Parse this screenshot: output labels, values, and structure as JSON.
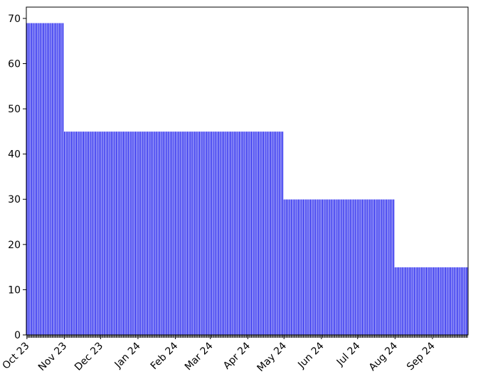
{
  "chart_data": {
    "type": "bar",
    "title": "",
    "xlabel": "",
    "ylabel": "",
    "x_axis": "date",
    "x_range": [
      "2023-10-01",
      "2024-09-30"
    ],
    "bar_color": "#2222ee",
    "bar_edge_color": "#ffffff",
    "series": [
      {
        "values_by_period": [
          {
            "from": "2023-10-01",
            "to": "2023-10-31",
            "value": 69
          },
          {
            "from": "2023-11-01",
            "to": "2024-04-30",
            "value": 45
          },
          {
            "from": "2024-05-01",
            "to": "2024-07-31",
            "value": 30
          },
          {
            "from": "2024-08-01",
            "to": "2024-09-30",
            "value": 15
          }
        ]
      }
    ],
    "ylim": [
      0,
      72.5
    ],
    "yticks": [
      0,
      10,
      20,
      30,
      40,
      50,
      60,
      70
    ],
    "xticks": [
      {
        "date": "2023-10-01",
        "label": "Oct 23"
      },
      {
        "date": "2023-11-01",
        "label": "Nov 23"
      },
      {
        "date": "2023-12-01",
        "label": "Dec 23"
      },
      {
        "date": "2024-01-01",
        "label": "Jan 24"
      },
      {
        "date": "2024-02-01",
        "label": "Feb 24"
      },
      {
        "date": "2024-03-01",
        "label": "Mar 24"
      },
      {
        "date": "2024-04-01",
        "label": "Apr 24"
      },
      {
        "date": "2024-05-01",
        "label": "May 24"
      },
      {
        "date": "2024-06-01",
        "label": "Jun 24"
      },
      {
        "date": "2024-07-01",
        "label": "Jul 24"
      },
      {
        "date": "2024-08-01",
        "label": "Aug 24"
      },
      {
        "date": "2024-09-01",
        "label": "Sep 24"
      }
    ],
    "grid": false,
    "legend": "none"
  }
}
